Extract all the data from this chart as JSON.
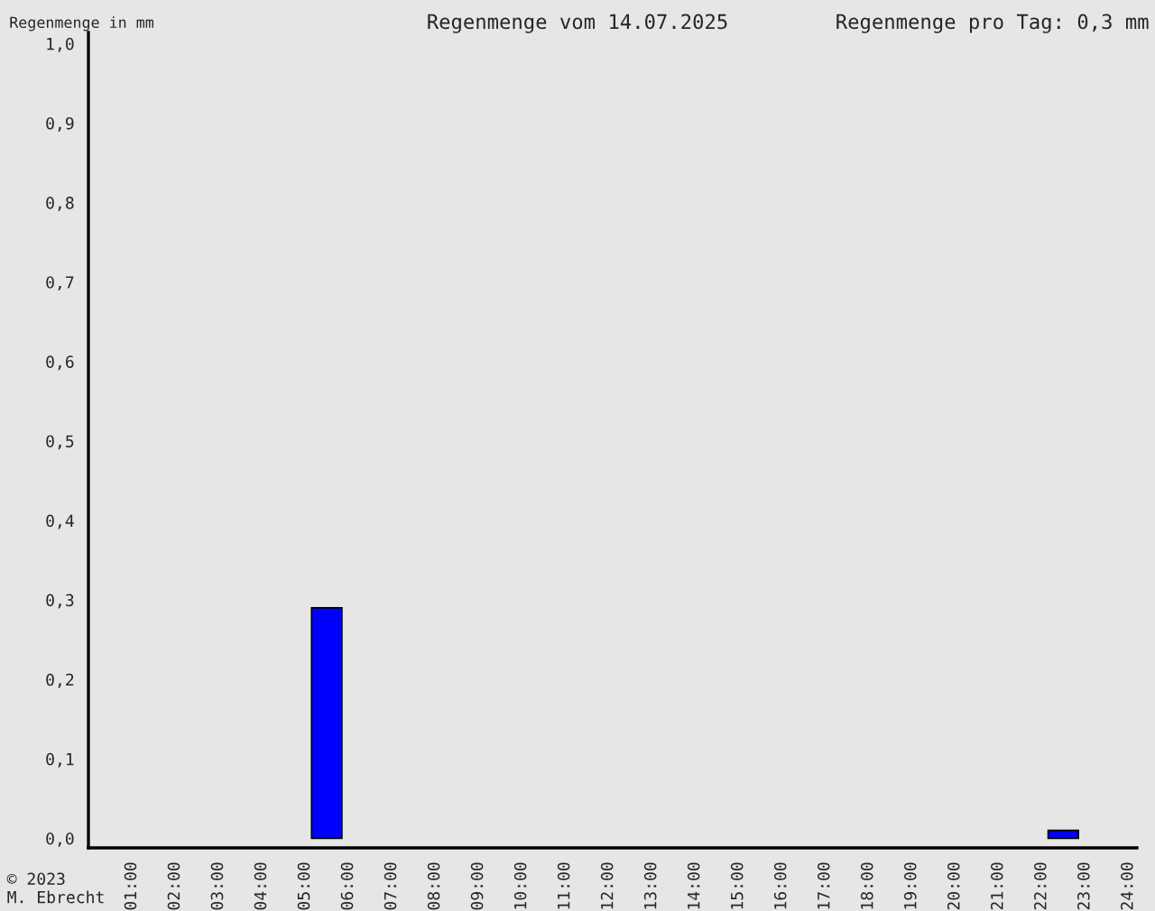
{
  "chart_data": {
    "type": "bar",
    "title": "Regenmenge vom 14.07.2025",
    "subtitle": "Regenmenge pro Tag: 0,3 mm",
    "ylabel": "Regenmenge in mm",
    "annotations": [
      "© 2023\nM. Ebrecht"
    ],
    "x": [
      5.5,
      22.5
    ],
    "series": [
      {
        "color": "#0000ff",
        "values": [
          0.29,
          0.01
        ]
      }
    ],
    "xlim": [
      0,
      24.2
    ],
    "ylim": [
      -0.012,
      1.014
    ],
    "xticks": [
      {
        "value": 1,
        "label": "01:00"
      },
      {
        "value": 2,
        "label": "02:00"
      },
      {
        "value": 3,
        "label": "03:00"
      },
      {
        "value": 4,
        "label": "04:00"
      },
      {
        "value": 5,
        "label": "05:00"
      },
      {
        "value": 6,
        "label": "06:00"
      },
      {
        "value": 7,
        "label": "07:00"
      },
      {
        "value": 8,
        "label": "08:00"
      },
      {
        "value": 9,
        "label": "09:00"
      },
      {
        "value": 10,
        "label": "10:00"
      },
      {
        "value": 11,
        "label": "11:00"
      },
      {
        "value": 12,
        "label": "12:00"
      },
      {
        "value": 13,
        "label": "13:00"
      },
      {
        "value": 14,
        "label": "14:00"
      },
      {
        "value": 15,
        "label": "15:00"
      },
      {
        "value": 16,
        "label": "16:00"
      },
      {
        "value": 17,
        "label": "17:00"
      },
      {
        "value": 18,
        "label": "18:00"
      },
      {
        "value": 19,
        "label": "19:00"
      },
      {
        "value": 20,
        "label": "20:00"
      },
      {
        "value": 21,
        "label": "21:00"
      },
      {
        "value": 22,
        "label": "22:00"
      },
      {
        "value": 23,
        "label": "23:00"
      },
      {
        "value": 24,
        "label": "24:00"
      }
    ],
    "yticks": [
      {
        "value": 0,
        "label": "0,0"
      },
      {
        "value": 0.1,
        "label": "0,1"
      },
      {
        "value": 0.2,
        "label": "0,2"
      },
      {
        "value": 0.3,
        "label": "0,3"
      },
      {
        "value": 0.4,
        "label": "0,4"
      },
      {
        "value": 0.5,
        "label": "0,5"
      },
      {
        "value": 0.6,
        "label": "0,6"
      },
      {
        "value": 0.7,
        "label": "0,7"
      },
      {
        "value": 0.8,
        "label": "0,8"
      },
      {
        "value": 0.9,
        "label": "0,9"
      },
      {
        "value": 1.0,
        "label": "1,0"
      }
    ],
    "grid": false,
    "legend": false
  }
}
